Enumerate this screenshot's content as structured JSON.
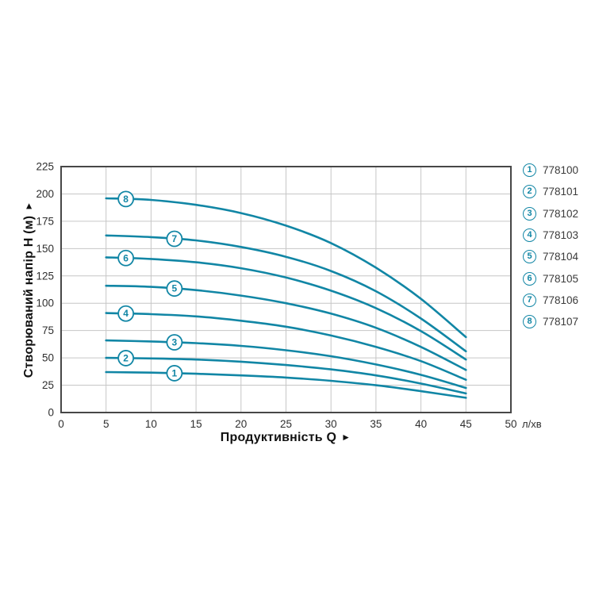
{
  "chart_data": {
    "type": "line",
    "title": "",
    "xlabel": "Продуктивність Q",
    "ylabel": "Створюваний напір Н (м)",
    "x_unit_label": "л/хв",
    "xlim": [
      0,
      50
    ],
    "ylim": [
      0,
      225
    ],
    "x_ticks": [
      0,
      5,
      10,
      15,
      20,
      25,
      30,
      35,
      40,
      45,
      50
    ],
    "y_ticks": [
      0,
      25,
      50,
      75,
      100,
      125,
      150,
      175,
      200,
      225
    ],
    "grid": true,
    "legend_position": "right-outside",
    "x": [
      5,
      10,
      15,
      20,
      25,
      30,
      35,
      40,
      45
    ],
    "series": [
      {
        "id": "1",
        "model": "778100",
        "label_q": 12.6,
        "values": [
          37,
          36.5,
          35.5,
          34,
          32,
          29,
          25,
          19.5,
          13.5
        ]
      },
      {
        "id": "2",
        "model": "778101",
        "label_q": 7.2,
        "values": [
          50,
          49.5,
          48.5,
          46.5,
          43.5,
          39.5,
          34,
          26.5,
          17.5
        ]
      },
      {
        "id": "3",
        "model": "778102",
        "label_q": 12.6,
        "values": [
          66,
          65,
          63.5,
          61,
          57,
          51.5,
          44,
          34.5,
          22.5
        ]
      },
      {
        "id": "4",
        "model": "778103",
        "label_q": 7.2,
        "values": [
          91,
          90,
          88,
          84,
          78.5,
          70.5,
          60,
          47,
          30
        ]
      },
      {
        "id": "5",
        "model": "778104",
        "label_q": 12.6,
        "values": [
          116,
          115,
          112,
          107,
          100,
          90.5,
          77.5,
          60,
          39
        ]
      },
      {
        "id": "6",
        "model": "778105",
        "label_q": 7.2,
        "values": [
          142,
          140.5,
          137.5,
          132,
          123.5,
          111.5,
          95.5,
          74.5,
          48.5
        ]
      },
      {
        "id": "7",
        "model": "778106",
        "label_q": 12.6,
        "values": [
          162,
          160.5,
          157.5,
          151.5,
          142.5,
          129.5,
          111,
          86,
          56
        ]
      },
      {
        "id": "8",
        "model": "778107",
        "label_q": 7.2,
        "values": [
          196,
          194.5,
          190,
          182.5,
          171,
          155,
          132.5,
          104,
          69
        ]
      }
    ]
  },
  "icons": {
    "axis_arrow": "►"
  },
  "style": {
    "curve_color": "#1186a5",
    "grid_color": "#c6c6c6",
    "border_color": "#474747",
    "tick_color": "#2f2f2f",
    "title_color": "#111111",
    "legend_text_color": "#3a3a3a"
  }
}
